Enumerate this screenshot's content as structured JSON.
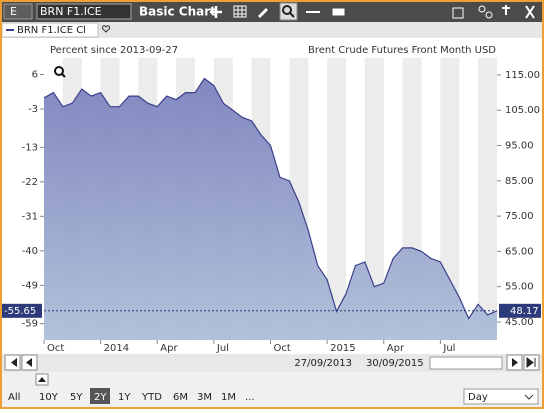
{
  "toolbar": {
    "exchange": "E",
    "symbol": "BRN F1.ICE",
    "title": "Basic Chart"
  },
  "tab": {
    "label": "BRN F1.ICE Cl"
  },
  "chart_data": {
    "type": "area",
    "y2_label": "Percent since 2013-09-27",
    "y_label": "Brent Crude Futures Front Month USD",
    "categories": [
      "Oct",
      null,
      null,
      null,
      null,
      null,
      "2014",
      null,
      null,
      null,
      null,
      null,
      "Apr",
      null,
      null,
      null,
      null,
      null,
      "Jul",
      null,
      null,
      null,
      null,
      null,
      "Oct",
      null,
      null,
      null,
      null,
      null,
      "2015",
      null,
      null,
      null,
      null,
      null,
      "Apr",
      null,
      null,
      null,
      null,
      null,
      "Jul",
      null,
      null,
      null,
      null,
      null,
      null
    ],
    "series": [
      {
        "name": "BRN F1.ICE Cl",
        "color": "#3b3f8c",
        "values": [
          108.5,
          110,
          106,
          107,
          111,
          109,
          110,
          106,
          106,
          109,
          109,
          107,
          106,
          109,
          108,
          110,
          110,
          114,
          112,
          107,
          105,
          103,
          102,
          98,
          95,
          86,
          85,
          79,
          71,
          61,
          57,
          48,
          53,
          61,
          62,
          55,
          56,
          63,
          66,
          66,
          65,
          63,
          62,
          57,
          52,
          46,
          50,
          47,
          48.17
        ]
      }
    ],
    "ylim": [
      39.9,
      119.8
    ],
    "yticks": [
      {
        "value": 45,
        "label": "45.00"
      },
      {
        "value": 55,
        "label": "55.00"
      },
      {
        "value": 65,
        "label": "65.00"
      },
      {
        "value": 75,
        "label": "75.00"
      },
      {
        "value": 85,
        "label": "85.00"
      },
      {
        "value": 95,
        "label": "95.00"
      },
      {
        "value": 105,
        "label": "105.00"
      },
      {
        "value": 115,
        "label": "115.00"
      }
    ],
    "y2lim": [
      -63.26,
      10.31
    ],
    "y2ticks": [
      6,
      -3,
      -13,
      -22,
      -31,
      -40,
      -49,
      -59
    ],
    "last_value": 48.17,
    "last_value_y2": -55.65
  },
  "navigator": {
    "start": "27/09/2013",
    "end": "30/09/2015"
  },
  "ranges": {
    "buttons": [
      "All",
      "10Y",
      "5Y",
      "2Y",
      "1Y",
      "YTD",
      "6M",
      "3M",
      "1M",
      "..."
    ],
    "selected": 3
  },
  "interval": "Day"
}
